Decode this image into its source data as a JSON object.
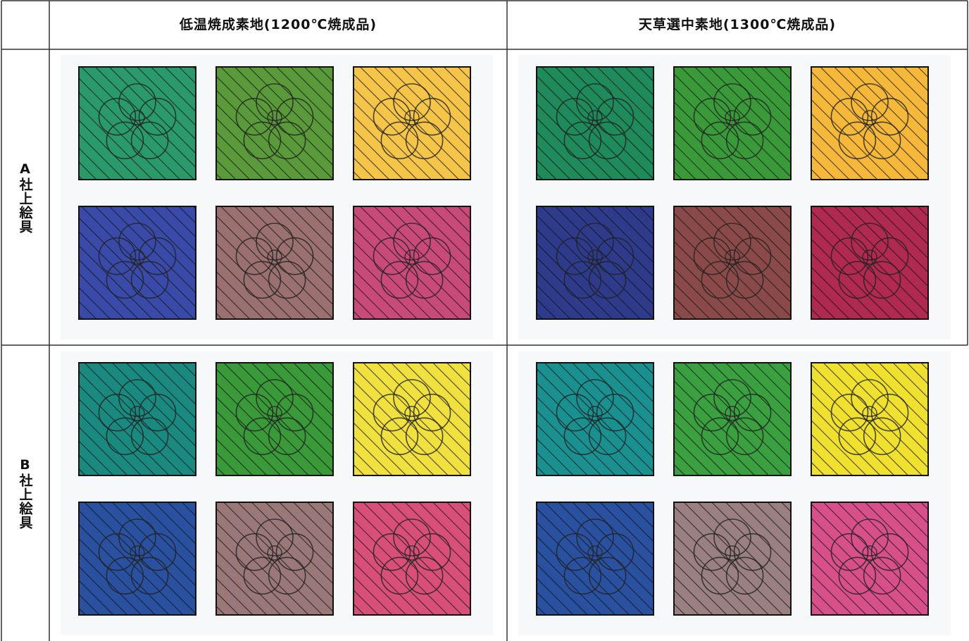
{
  "table": {
    "header": [
      "低温焼成素地(1200℃焼成品)",
      "天草選中素地(1300℃焼成品)"
    ],
    "rows": [
      {
        "label": "A社上絵具"
      },
      {
        "label": "B社上絵具"
      }
    ]
  }
}
